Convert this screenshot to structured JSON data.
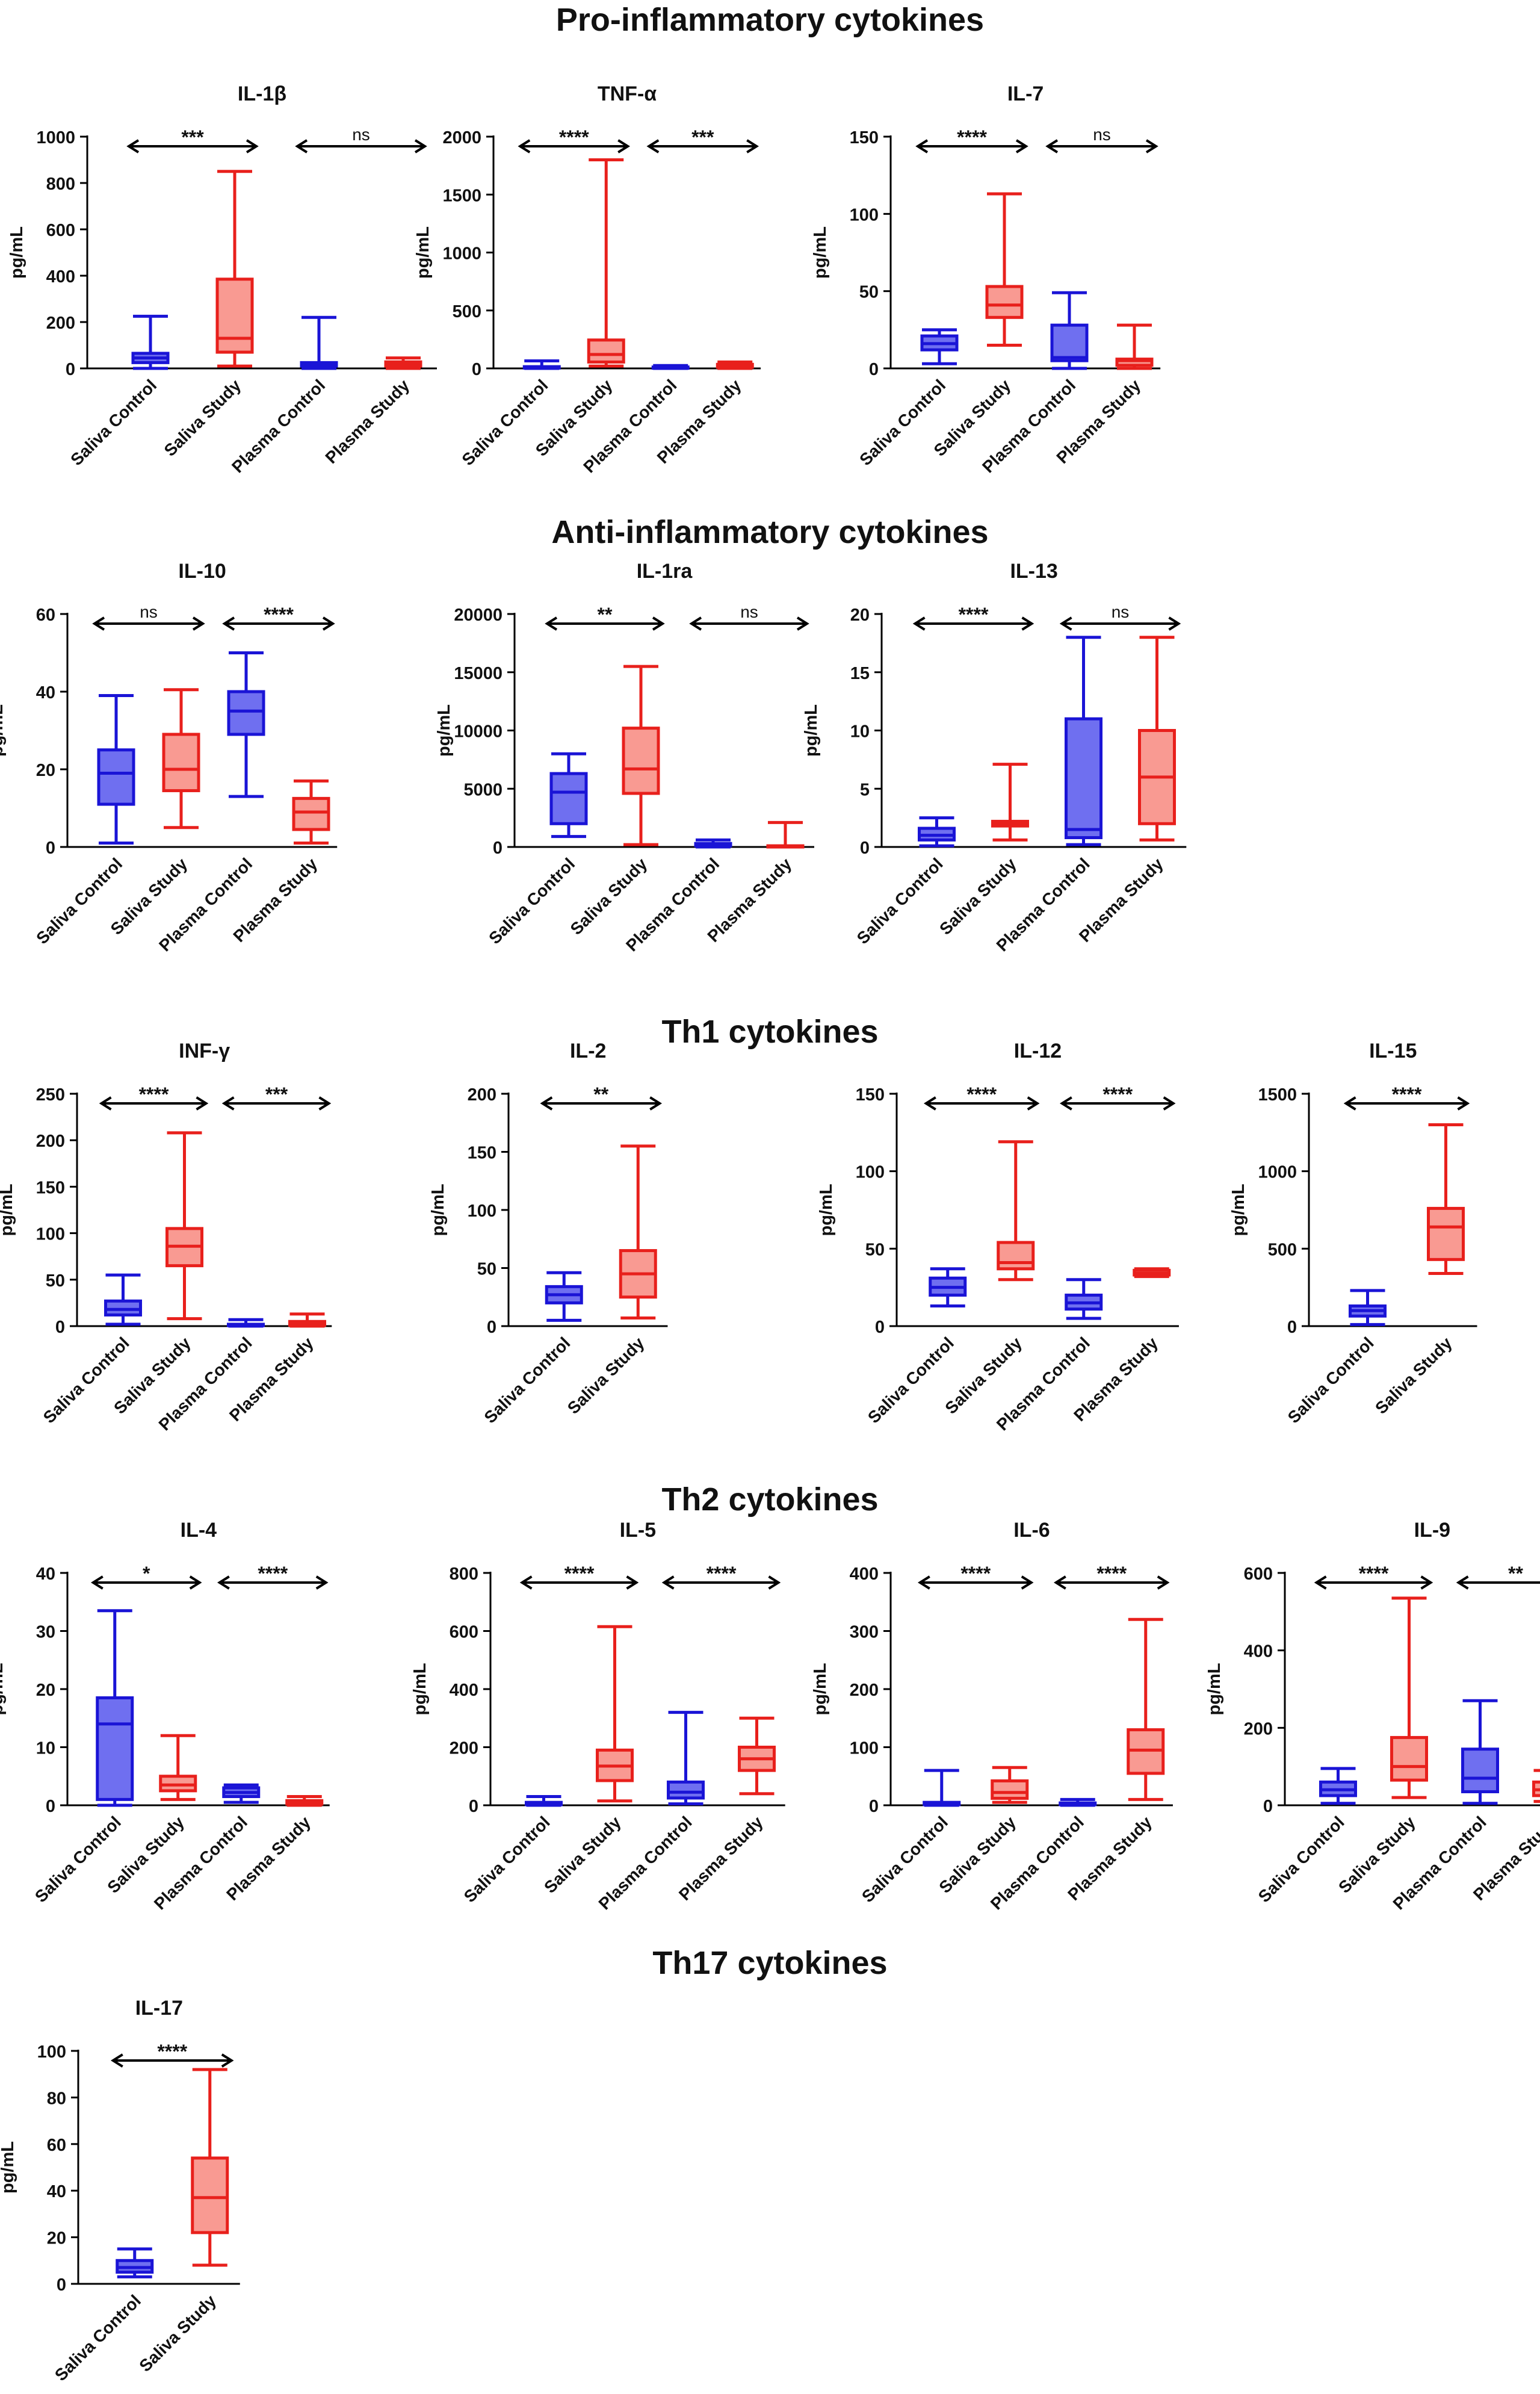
{
  "figure": {
    "sections": [
      {
        "title": "Pro-inflammatory cytokines"
      },
      {
        "title": "Anti-inflammatory cytokines"
      },
      {
        "title": "Th1 cytokines"
      },
      {
        "title": "Th2 cytokines"
      },
      {
        "title": "Th17 cytokines"
      }
    ],
    "colors": {
      "control_stroke": "#1a14d6",
      "control_fill": "#6f6ff0",
      "study_stroke": "#e8201c",
      "study_fill": "#f99a92",
      "axis": "#000000"
    }
  },
  "chart_data": [
    {
      "type": "box",
      "section": 0,
      "title": "IL-1β",
      "ylabel": "pg/mL",
      "ylim": [
        0,
        1000
      ],
      "yticks": [
        0,
        200,
        400,
        600,
        800,
        1000
      ],
      "categories": [
        "Saliva Control",
        "Saliva Study",
        "Plasma Control",
        "Plasma Study"
      ],
      "boxes": [
        {
          "group": "control",
          "min": 0,
          "q1": 25,
          "median": 45,
          "q3": 65,
          "max": 225
        },
        {
          "group": "study",
          "min": 10,
          "q1": 70,
          "median": 130,
          "q3": 385,
          "max": 850
        },
        {
          "group": "control",
          "min": 0,
          "q1": 10,
          "median": 20,
          "q3": 25,
          "max": 220
        },
        {
          "group": "study",
          "min": 0,
          "q1": 10,
          "median": 18,
          "q3": 28,
          "max": 45
        }
      ],
      "comparisons": [
        {
          "from": 0,
          "to": 1,
          "label": "***"
        },
        {
          "from": 2,
          "to": 3,
          "label": "ns"
        }
      ]
    },
    {
      "type": "box",
      "section": 0,
      "title": "TNF-α",
      "ylabel": "pg/mL",
      "ylim": [
        0,
        2000
      ],
      "yticks": [
        0,
        500,
        1000,
        1500,
        2000
      ],
      "categories": [
        "Saliva Control",
        "Saliva Study",
        "Plasma Control",
        "Plasma Study"
      ],
      "boxes": [
        {
          "group": "control",
          "min": 0,
          "q1": 3,
          "median": 8,
          "q3": 15,
          "max": 65
        },
        {
          "group": "study",
          "min": 20,
          "q1": 55,
          "median": 120,
          "q3": 245,
          "max": 1800
        },
        {
          "group": "control",
          "min": 0,
          "q1": 3,
          "median": 8,
          "q3": 12,
          "max": 25
        },
        {
          "group": "study",
          "min": 0,
          "q1": 10,
          "median": 20,
          "q3": 35,
          "max": 55
        }
      ],
      "comparisons": [
        {
          "from": 0,
          "to": 1,
          "label": "****"
        },
        {
          "from": 2,
          "to": 3,
          "label": "***"
        }
      ]
    },
    {
      "type": "box",
      "section": 0,
      "title": "IL-7",
      "ylabel": "pg/mL",
      "ylim": [
        0,
        150
      ],
      "yticks": [
        0,
        50,
        100,
        150
      ],
      "categories": [
        "Saliva Control",
        "Saliva Study",
        "Plasma Control",
        "Plasma Study"
      ],
      "boxes": [
        {
          "group": "control",
          "min": 3,
          "q1": 12,
          "median": 16,
          "q3": 21,
          "max": 25
        },
        {
          "group": "study",
          "min": 15,
          "q1": 33,
          "median": 41,
          "q3": 53,
          "max": 113
        },
        {
          "group": "control",
          "min": 0,
          "q1": 5,
          "median": 7,
          "q3": 28,
          "max": 49
        },
        {
          "group": "study",
          "min": 0,
          "q1": 2,
          "median": 5,
          "q3": 6,
          "max": 28
        }
      ],
      "comparisons": [
        {
          "from": 0,
          "to": 1,
          "label": "****"
        },
        {
          "from": 2,
          "to": 3,
          "label": "ns"
        }
      ]
    },
    {
      "type": "box",
      "section": 1,
      "title": "IL-10",
      "ylabel": "pg/mL",
      "ylim": [
        0,
        60
      ],
      "yticks": [
        0,
        20,
        40,
        60
      ],
      "categories": [
        "Saliva Control",
        "Saliva Study",
        "Plasma Control",
        "Plasma Study"
      ],
      "boxes": [
        {
          "group": "control",
          "min": 1,
          "q1": 11,
          "median": 19,
          "q3": 25,
          "max": 39
        },
        {
          "group": "study",
          "min": 5,
          "q1": 14.5,
          "median": 20,
          "q3": 29,
          "max": 40.5
        },
        {
          "group": "control",
          "min": 13,
          "q1": 29,
          "median": 35,
          "q3": 40,
          "max": 50
        },
        {
          "group": "study",
          "min": 1,
          "q1": 4.5,
          "median": 9,
          "q3": 12.5,
          "max": 17
        }
      ],
      "comparisons": [
        {
          "from": 0,
          "to": 1,
          "label": "ns"
        },
        {
          "from": 2,
          "to": 3,
          "label": "****"
        }
      ]
    },
    {
      "type": "box",
      "section": 1,
      "title": "IL-1ra",
      "ylabel": "pg/mL",
      "ylim": [
        0,
        20000
      ],
      "yticks": [
        0,
        5000,
        10000,
        15000,
        20000
      ],
      "categories": [
        "Saliva Control",
        "Saliva Study",
        "Plasma Control",
        "Plasma Study"
      ],
      "boxes": [
        {
          "group": "control",
          "min": 900,
          "q1": 2000,
          "median": 4700,
          "q3": 6300,
          "max": 8000
        },
        {
          "group": "study",
          "min": 200,
          "q1": 4600,
          "median": 6700,
          "q3": 10200,
          "max": 15500
        },
        {
          "group": "control",
          "min": 0,
          "q1": 100,
          "median": 200,
          "q3": 300,
          "max": 600
        },
        {
          "group": "study",
          "min": 0,
          "q1": 20,
          "median": 50,
          "q3": 100,
          "max": 2100
        }
      ],
      "comparisons": [
        {
          "from": 0,
          "to": 1,
          "label": "**"
        },
        {
          "from": 2,
          "to": 3,
          "label": "ns"
        }
      ]
    },
    {
      "type": "box",
      "section": 1,
      "title": "IL-13",
      "ylabel": "pg/mL",
      "ylim": [
        0,
        20
      ],
      "yticks": [
        0,
        5,
        10,
        15,
        20
      ],
      "categories": [
        "Saliva Control",
        "Saliva Study",
        "Plasma Control",
        "Plasma Study"
      ],
      "boxes": [
        {
          "group": "control",
          "min": 0.1,
          "q1": 0.6,
          "median": 1.0,
          "q3": 1.6,
          "max": 2.5
        },
        {
          "group": "study",
          "min": 0.6,
          "q1": 1.8,
          "median": 2.0,
          "q3": 2.2,
          "max": 7.1
        },
        {
          "group": "control",
          "min": 0.2,
          "q1": 0.8,
          "median": 1.5,
          "q3": 11.0,
          "max": 18
        },
        {
          "group": "study",
          "min": 0.6,
          "q1": 2.0,
          "median": 6.0,
          "q3": 10.0,
          "max": 18
        }
      ],
      "comparisons": [
        {
          "from": 0,
          "to": 1,
          "label": "****"
        },
        {
          "from": 2,
          "to": 3,
          "label": "ns"
        }
      ]
    },
    {
      "type": "box",
      "section": 2,
      "title": "INF-γ",
      "ylabel": "pg/mL",
      "ylim": [
        0,
        250
      ],
      "yticks": [
        0,
        50,
        100,
        150,
        200,
        250
      ],
      "categories": [
        "Saliva Control",
        "Saliva Study",
        "Plasma Control",
        "Plasma Study"
      ],
      "boxes": [
        {
          "group": "control",
          "min": 2,
          "q1": 12,
          "median": 18,
          "q3": 27,
          "max": 55
        },
        {
          "group": "study",
          "min": 8,
          "q1": 65,
          "median": 86,
          "q3": 105,
          "max": 208
        },
        {
          "group": "control",
          "min": 0,
          "q1": 0.5,
          "median": 1,
          "q3": 2,
          "max": 7
        },
        {
          "group": "study",
          "min": 0,
          "q1": 1,
          "median": 3,
          "q3": 5,
          "max": 13
        }
      ],
      "comparisons": [
        {
          "from": 0,
          "to": 1,
          "label": "****"
        },
        {
          "from": 2,
          "to": 3,
          "label": "***"
        }
      ]
    },
    {
      "type": "box",
      "section": 2,
      "title": "IL-2",
      "ylabel": "pg/mL",
      "ylim": [
        0,
        200
      ],
      "yticks": [
        0,
        50,
        100,
        150,
        200
      ],
      "categories": [
        "Saliva Control",
        "Saliva Study"
      ],
      "boxes": [
        {
          "group": "control",
          "min": 5,
          "q1": 20,
          "median": 27,
          "q3": 34,
          "max": 46
        },
        {
          "group": "study",
          "min": 7,
          "q1": 25,
          "median": 45,
          "q3": 65,
          "max": 155
        }
      ],
      "comparisons": [
        {
          "from": 0,
          "to": 1,
          "label": "**"
        }
      ]
    },
    {
      "type": "box",
      "section": 2,
      "title": "IL-12",
      "ylabel": "pg/mL",
      "ylim": [
        0,
        150
      ],
      "yticks": [
        0,
        50,
        100,
        150
      ],
      "categories": [
        "Saliva Control",
        "Saliva Study",
        "Plasma Control",
        "Plasma Study"
      ],
      "boxes": [
        {
          "group": "control",
          "min": 13,
          "q1": 20,
          "median": 25,
          "q3": 31,
          "max": 37
        },
        {
          "group": "study",
          "min": 30,
          "q1": 37,
          "median": 41,
          "q3": 54,
          "max": 119
        },
        {
          "group": "control",
          "min": 5,
          "q1": 11,
          "median": 15,
          "q3": 20,
          "max": 30
        },
        {
          "group": "study",
          "min": 32,
          "q1": 33,
          "median": 34,
          "q3": 36,
          "max": 37
        }
      ],
      "comparisons": [
        {
          "from": 0,
          "to": 1,
          "label": "****"
        },
        {
          "from": 2,
          "to": 3,
          "label": "****"
        }
      ]
    },
    {
      "type": "box",
      "section": 2,
      "title": "IL-15",
      "ylabel": "pg/mL",
      "ylim": [
        0,
        1500
      ],
      "yticks": [
        0,
        500,
        1000,
        1500
      ],
      "categories": [
        "Saliva Control",
        "Saliva Study"
      ],
      "boxes": [
        {
          "group": "control",
          "min": 10,
          "q1": 65,
          "median": 100,
          "q3": 130,
          "max": 230
        },
        {
          "group": "study",
          "min": 340,
          "q1": 430,
          "median": 640,
          "q3": 760,
          "max": 1300
        }
      ],
      "comparisons": [
        {
          "from": 0,
          "to": 1,
          "label": "****"
        }
      ]
    },
    {
      "type": "box",
      "section": 3,
      "title": "IL-4",
      "ylabel": "pg/mL",
      "ylim": [
        0,
        40
      ],
      "yticks": [
        0,
        10,
        20,
        30,
        40
      ],
      "categories": [
        "Saliva Control",
        "Saliva Study",
        "Plasma Control",
        "Plasma Study"
      ],
      "boxes": [
        {
          "group": "control",
          "min": 0,
          "q1": 1,
          "median": 14,
          "q3": 18.5,
          "max": 33.5
        },
        {
          "group": "study",
          "min": 1,
          "q1": 2.5,
          "median": 3.5,
          "q3": 5,
          "max": 12
        },
        {
          "group": "control",
          "min": 0.5,
          "q1": 1.5,
          "median": 2.2,
          "q3": 3,
          "max": 3.5
        },
        {
          "group": "study",
          "min": 0,
          "q1": 0.2,
          "median": 0.5,
          "q3": 0.8,
          "max": 1.5
        }
      ],
      "comparisons": [
        {
          "from": 0,
          "to": 1,
          "label": "*"
        },
        {
          "from": 2,
          "to": 3,
          "label": "****"
        }
      ]
    },
    {
      "type": "box",
      "section": 3,
      "title": "IL-5",
      "ylabel": "pg/mL",
      "ylim": [
        0,
        800
      ],
      "yticks": [
        0,
        200,
        400,
        600,
        800
      ],
      "categories": [
        "Saliva Control",
        "Saliva Study",
        "Plasma Control",
        "Plasma Study"
      ],
      "boxes": [
        {
          "group": "control",
          "min": 0,
          "q1": 2,
          "median": 5,
          "q3": 10,
          "max": 30
        },
        {
          "group": "study",
          "min": 15,
          "q1": 85,
          "median": 135,
          "q3": 190,
          "max": 615
        },
        {
          "group": "control",
          "min": 5,
          "q1": 25,
          "median": 45,
          "q3": 80,
          "max": 320
        },
        {
          "group": "study",
          "min": 40,
          "q1": 120,
          "median": 160,
          "q3": 200,
          "max": 300
        }
      ],
      "comparisons": [
        {
          "from": 0,
          "to": 1,
          "label": "****"
        },
        {
          "from": 2,
          "to": 3,
          "label": "****"
        }
      ]
    },
    {
      "type": "box",
      "section": 3,
      "title": "IL-6",
      "ylabel": "pg/mL",
      "ylim": [
        0,
        400
      ],
      "yticks": [
        0,
        100,
        200,
        300,
        400
      ],
      "categories": [
        "Saliva Control",
        "Saliva Study",
        "Plasma Control",
        "Plasma Study"
      ],
      "boxes": [
        {
          "group": "control",
          "min": 0,
          "q1": 1,
          "median": 2,
          "q3": 5,
          "max": 60
        },
        {
          "group": "study",
          "min": 5,
          "q1": 12,
          "median": 22,
          "q3": 42,
          "max": 65
        },
        {
          "group": "control",
          "min": 0,
          "q1": 1,
          "median": 2,
          "q3": 4,
          "max": 10
        },
        {
          "group": "study",
          "min": 10,
          "q1": 55,
          "median": 95,
          "q3": 130,
          "max": 320
        }
      ],
      "comparisons": [
        {
          "from": 0,
          "to": 1,
          "label": "****"
        },
        {
          "from": 2,
          "to": 3,
          "label": "****"
        }
      ]
    },
    {
      "type": "box",
      "section": 3,
      "title": "IL-9",
      "ylabel": "pg/mL",
      "ylim": [
        0,
        600
      ],
      "yticks": [
        0,
        200,
        400,
        600
      ],
      "categories": [
        "Saliva Control",
        "Saliva Study",
        "Plasma Control",
        "Plasma Study"
      ],
      "boxes": [
        {
          "group": "control",
          "min": 5,
          "q1": 25,
          "median": 40,
          "q3": 60,
          "max": 95
        },
        {
          "group": "study",
          "min": 20,
          "q1": 65,
          "median": 100,
          "q3": 175,
          "max": 535
        },
        {
          "group": "control",
          "min": 5,
          "q1": 35,
          "median": 70,
          "q3": 145,
          "max": 270
        },
        {
          "group": "study",
          "min": 10,
          "q1": 25,
          "median": 40,
          "q3": 60,
          "max": 90
        }
      ],
      "comparisons": [
        {
          "from": 0,
          "to": 1,
          "label": "****"
        },
        {
          "from": 2,
          "to": 3,
          "label": "**"
        }
      ]
    },
    {
      "type": "box",
      "section": 4,
      "title": "IL-17",
      "ylabel": "pg/mL",
      "ylim": [
        0,
        100
      ],
      "yticks": [
        0,
        20,
        40,
        60,
        80,
        100
      ],
      "categories": [
        "Saliva Control",
        "Saliva Study"
      ],
      "boxes": [
        {
          "group": "control",
          "min": 3,
          "q1": 5,
          "median": 7,
          "q3": 10,
          "max": 15
        },
        {
          "group": "study",
          "min": 8,
          "q1": 22,
          "median": 37,
          "q3": 54,
          "max": 92
        }
      ],
      "comparisons": [
        {
          "from": 0,
          "to": 1,
          "label": "****"
        }
      ]
    }
  ]
}
